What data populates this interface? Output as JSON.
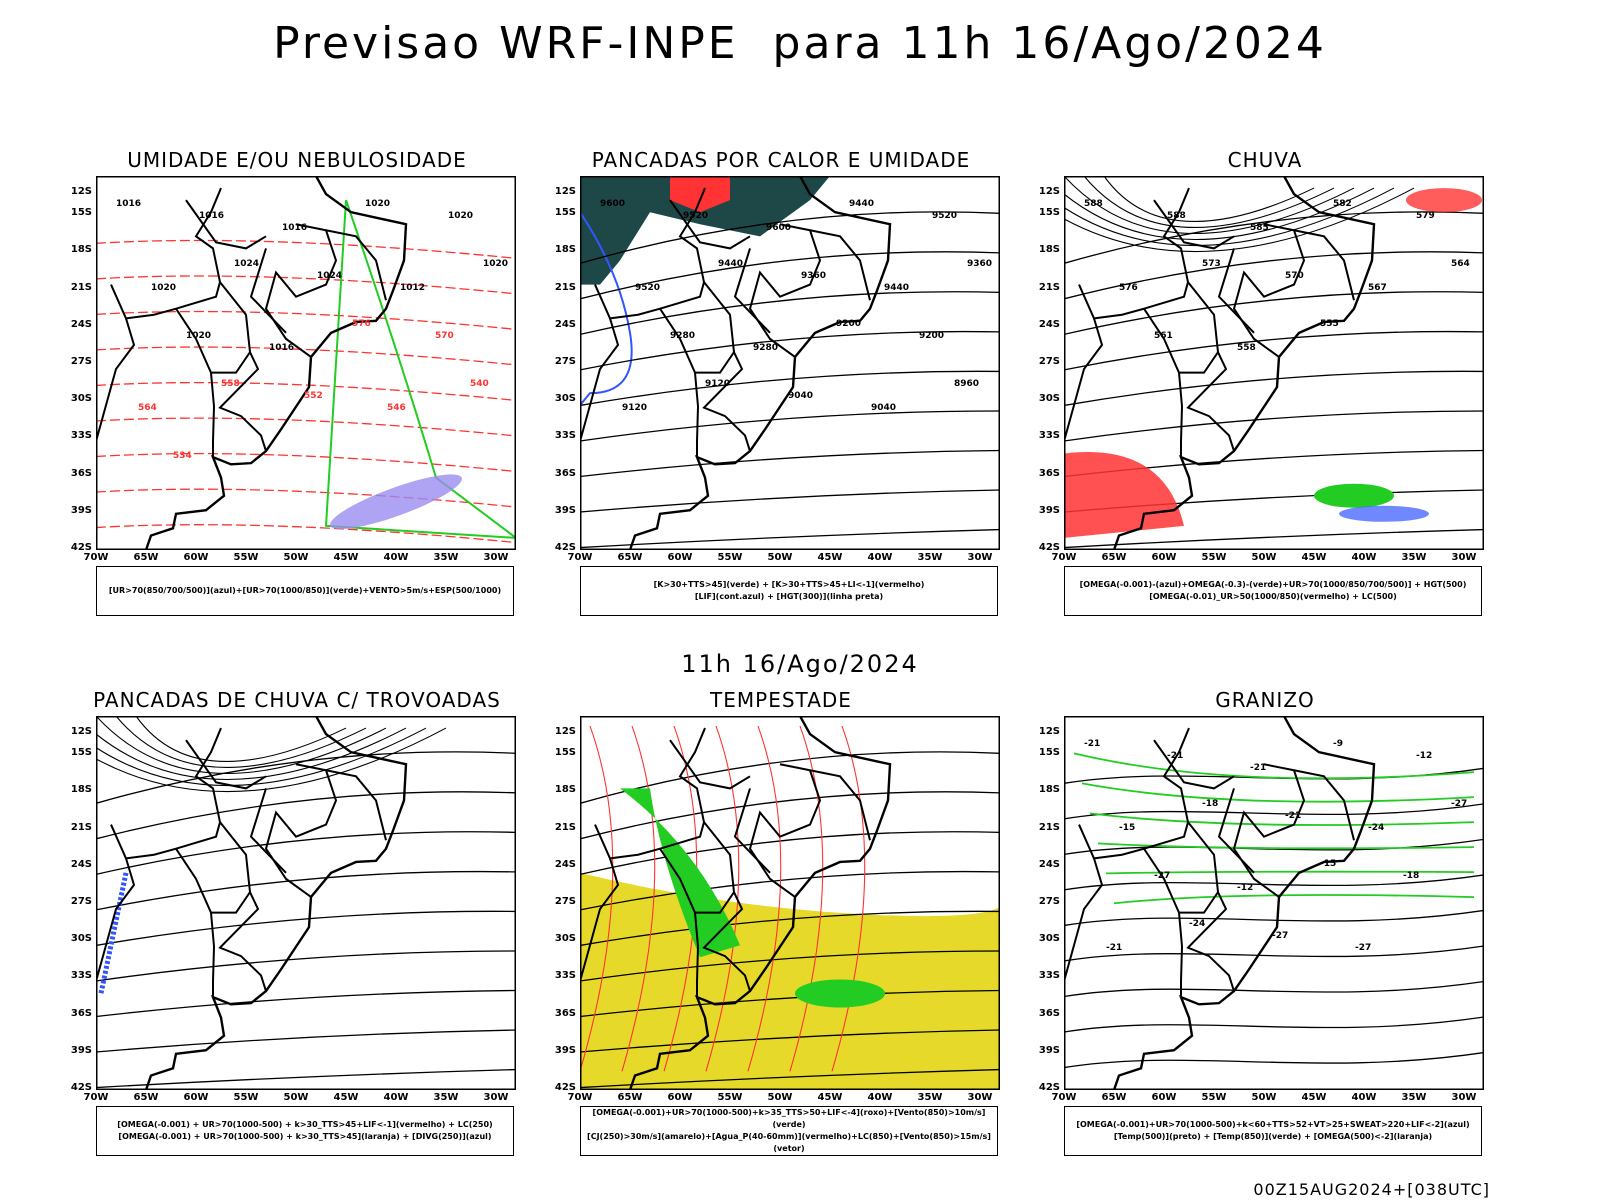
{
  "title": "Previsao WRF-INPE  para 11h 16/Ago/2024",
  "subtitle": "11h 16/Ago/2024",
  "footer": "00Z15AUG2024+[038UTC]",
  "axes": {
    "lat_labels": [
      "12S",
      "15S",
      "18S",
      "21S",
      "24S",
      "27S",
      "30S",
      "33S",
      "36S",
      "39S",
      "42S"
    ],
    "lon_labels": [
      "70W",
      "65W",
      "60W",
      "55W",
      "50W",
      "45W",
      "40W",
      "35W",
      "30W"
    ]
  },
  "colors": {
    "green": "#22cc22",
    "red": "#ff3333",
    "blue": "#3355ff",
    "purple": "#9b8cf0",
    "yellow": "#e6d92a",
    "teal": "#1e4848",
    "orange": "#ff8c1a",
    "black": "#000000"
  },
  "panels": [
    {
      "id": "p1",
      "title": "UMIDADE E/OU NEBULOSIDADE",
      "legend": [
        "[UR>70(850/700/500)](azul)+[UR>70(1000/850)](verde)+VENTO>5m/s+ESP(500/1000)"
      ],
      "contour_labels": [
        "1016",
        "1016",
        "1016",
        "1020",
        "1020",
        "1020",
        "1024",
        "1024",
        "1012",
        "1020",
        "1020",
        "1016",
        "576",
        "570",
        "564",
        "558",
        "552",
        "546",
        "540",
        "534"
      ]
    },
    {
      "id": "p2",
      "title": "PANCADAS POR CALOR E UMIDADE",
      "legend": [
        "[K>30+TTS>45](verde) + [K>30+TTS>45+LI<-1](vermelho)",
        "[LIF](cont.azul) + [HGT(300)](linha preta)"
      ],
      "contour_labels": [
        "9600",
        "9520",
        "9600",
        "9440",
        "9520",
        "9520",
        "9440",
        "9360",
        "9440",
        "9360",
        "9280",
        "9280",
        "9200",
        "9200",
        "9120",
        "9120",
        "9040",
        "9040",
        "8960"
      ]
    },
    {
      "id": "p3",
      "title": "CHUVA",
      "legend": [
        "[OMEGA(-0.001)-(azul)+OMEGA(-0.3)-(verde)+UR>70(1000/850/700/500)] + HGT(500)",
        "[OMEGA(-0.01)_UR>50(1000/850)(vermelho) + LC(500)"
      ],
      "contour_labels": [
        "588",
        "588",
        "585",
        "582",
        "579",
        "576",
        "573",
        "570",
        "567",
        "564",
        "561",
        "558",
        "555"
      ]
    },
    {
      "id": "p4",
      "title": "PANCADAS DE CHUVA C/ TROVOADAS",
      "legend": [
        "[OMEGA(-0.001) + UR>70(1000-500) + k>30_TTS>45+LIF<-1](vermelho) + LC(250)",
        "[OMEGA(-0.001) + UR>70(1000-500) + k>30_TTS>45](laranja) + [DIVG(250)](azul)"
      ],
      "contour_labels": []
    },
    {
      "id": "p5",
      "title": "TEMPESTADE",
      "legend": [
        "[OMEGA(-0.001)+UR>70(1000-500)+k>35_TTS>50+LIF<-4](roxo)+[Vento(850)>10m/s](verde)",
        "[CJ(250)>30m/s](amarelo)+[Agua_P(40-60mm)](vermelho)+LC(850)+[Vento(850)>15m/s](vetor)"
      ],
      "contour_labels": []
    },
    {
      "id": "p6",
      "title": "GRANIZO",
      "legend": [
        "[OMEGA(-0.001)+UR>70(1000-500)+k<60+TTS>52+VT>25+SWEAT>220+LIF<-2](azul)",
        "[Temp(500)](preto) + [Temp(850)](verde) + [OMEGA(500)<-2](laranja)"
      ],
      "contour_labels": [
        "-21",
        "-21",
        "-21",
        "-9",
        "-12",
        "-15",
        "-18",
        "-21",
        "-24",
        "-27",
        "-27",
        "-12",
        "-15",
        "-18",
        "-21",
        "-24",
        "-27",
        "-27"
      ]
    }
  ]
}
